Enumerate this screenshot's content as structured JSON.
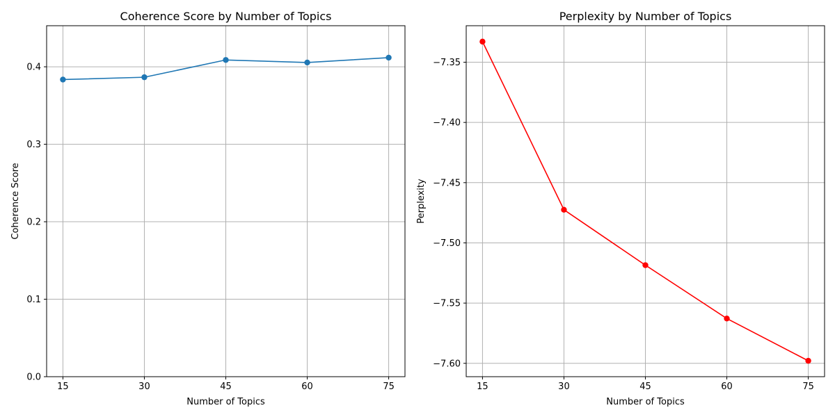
{
  "chart_data": [
    {
      "type": "line",
      "title": "Coherence Score by Number of Topics",
      "xlabel": "Number of Topics",
      "ylabel": "Coherence Score",
      "x": [
        15,
        30,
        45,
        60,
        75
      ],
      "x_tick_labels": [
        "15",
        "30",
        "45",
        "60",
        "75"
      ],
      "y_ticks": [
        0.0,
        0.1,
        0.2,
        0.3,
        0.4
      ],
      "y_tick_labels": [
        "0.0",
        "0.1",
        "0.2",
        "0.3",
        "0.4"
      ],
      "xlim": [
        12,
        78
      ],
      "ylim": [
        0,
        0.453
      ],
      "grid": true,
      "series": [
        {
          "values": [
            0.3835,
            0.3865,
            0.4088,
            0.4055,
            0.4118
          ],
          "color": "#1f77b4"
        }
      ]
    },
    {
      "type": "line",
      "title": "Perplexity by Number of Topics",
      "xlabel": "Number of Topics",
      "ylabel": "Perplexity",
      "x": [
        15,
        30,
        45,
        60,
        75
      ],
      "x_tick_labels": [
        "15",
        "30",
        "45",
        "60",
        "75"
      ],
      "y_ticks": [
        -7.6,
        -7.55,
        -7.5,
        -7.45,
        -7.4,
        -7.35
      ],
      "y_tick_labels": [
        "−7.60",
        "−7.55",
        "−7.50",
        "−7.45",
        "−7.40",
        "−7.35"
      ],
      "xlim": [
        12,
        78
      ],
      "ylim": [
        -7.6111,
        -7.3197
      ],
      "grid": true,
      "series": [
        {
          "values": [
            -7.3329,
            -7.4725,
            -7.5185,
            -7.5628,
            -7.5979
          ],
          "color": "#ff0000"
        }
      ]
    }
  ]
}
